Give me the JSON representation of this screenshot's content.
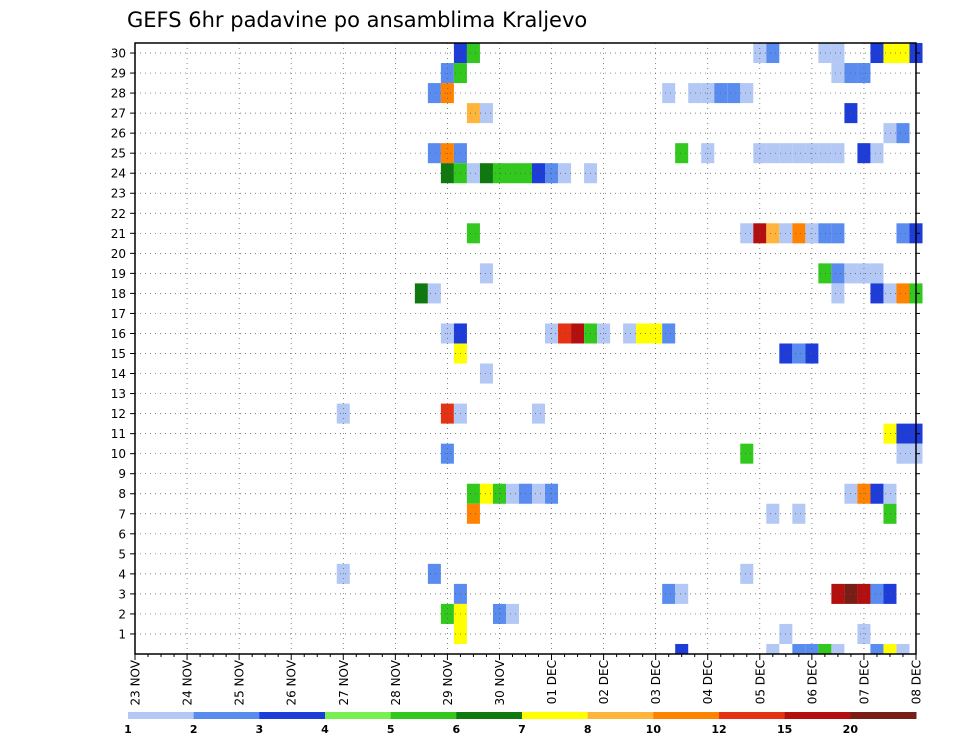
{
  "chart_data": {
    "type": "heatmap",
    "title": "GEFS 6hr padavine po ansamblima Kraljevo",
    "xlabel": "",
    "ylabel": "",
    "x_ticks": [
      "23 NOV",
      "24 NOV",
      "25 NOV",
      "26 NOV",
      "27 NOV",
      "28 NOV",
      "29 NOV",
      "30 NOV",
      "01 DEC",
      "02 DEC",
      "03 DEC",
      "04 DEC",
      "05 DEC",
      "06 DEC",
      "07 DEC",
      "08 DEC"
    ],
    "y_ticks": [
      "1",
      "2",
      "3",
      "4",
      "5",
      "6",
      "7",
      "8",
      "9",
      "10",
      "11",
      "12",
      "13",
      "14",
      "15",
      "16",
      "17",
      "18",
      "19",
      "20",
      "21",
      "22",
      "23",
      "24",
      "25",
      "26",
      "27",
      "28",
      "29",
      "30"
    ],
    "step_hours": 6,
    "grid": true,
    "colorbar": {
      "labels": [
        "1",
        "2",
        "3",
        "4",
        "5",
        "6",
        "7",
        "8",
        "10",
        "12",
        "15",
        "20"
      ],
      "colors": [
        "#b4c8f5",
        "#5a8cf0",
        "#1e3cd7",
        "#78f050",
        "#32c81e",
        "#0f780f",
        "#ffff00",
        "#ffb43c",
        "#ff8200",
        "#e63214",
        "#b40f0f",
        "#781e14"
      ]
    },
    "cells": [
      [
        30,
        25,
        3
      ],
      [
        30,
        26,
        5
      ],
      [
        30,
        48,
        1
      ],
      [
        30,
        49,
        2
      ],
      [
        30,
        53,
        1
      ],
      [
        30,
        54,
        1
      ],
      [
        30,
        57,
        3
      ],
      [
        30,
        58,
        7
      ],
      [
        30,
        59,
        7
      ],
      [
        30,
        60,
        3
      ],
      [
        29,
        24,
        2
      ],
      [
        29,
        25,
        5
      ],
      [
        29,
        54,
        1
      ],
      [
        29,
        55,
        2
      ],
      [
        29,
        56,
        2
      ],
      [
        28,
        23,
        2
      ],
      [
        28,
        24,
        10
      ],
      [
        28,
        41,
        1
      ],
      [
        28,
        43,
        1
      ],
      [
        28,
        44,
        1
      ],
      [
        28,
        45,
        2
      ],
      [
        28,
        46,
        2
      ],
      [
        28,
        47,
        1
      ],
      [
        27,
        26,
        8
      ],
      [
        27,
        27,
        1
      ],
      [
        27,
        55,
        3
      ],
      [
        26,
        58,
        1
      ],
      [
        26,
        59,
        2
      ],
      [
        25,
        23,
        2
      ],
      [
        25,
        24,
        10
      ],
      [
        25,
        25,
        2
      ],
      [
        25,
        42,
        5
      ],
      [
        25,
        44,
        1
      ],
      [
        25,
        48,
        1
      ],
      [
        25,
        49,
        1
      ],
      [
        25,
        50,
        1
      ],
      [
        25,
        51,
        1
      ],
      [
        25,
        52,
        1
      ],
      [
        25,
        53,
        1
      ],
      [
        25,
        54,
        1
      ],
      [
        25,
        56,
        3
      ],
      [
        25,
        57,
        1
      ],
      [
        24,
        24,
        6
      ],
      [
        24,
        25,
        5
      ],
      [
        24,
        26,
        1
      ],
      [
        24,
        27,
        6
      ],
      [
        24,
        28,
        5
      ],
      [
        24,
        29,
        5
      ],
      [
        24,
        30,
        5
      ],
      [
        24,
        31,
        3
      ],
      [
        24,
        32,
        2
      ],
      [
        24,
        33,
        1
      ],
      [
        24,
        35,
        1
      ],
      [
        21,
        26,
        5
      ],
      [
        21,
        47,
        1
      ],
      [
        21,
        48,
        15
      ],
      [
        21,
        49,
        8
      ],
      [
        21,
        50,
        1
      ],
      [
        21,
        51,
        10
      ],
      [
        21,
        52,
        1
      ],
      [
        21,
        53,
        2
      ],
      [
        21,
        54,
        2
      ],
      [
        21,
        59,
        2
      ],
      [
        21,
        60,
        3
      ],
      [
        19,
        27,
        1
      ],
      [
        19,
        53,
        5
      ],
      [
        19,
        54,
        2
      ],
      [
        19,
        55,
        1
      ],
      [
        19,
        56,
        1
      ],
      [
        19,
        57,
        1
      ],
      [
        18,
        22,
        6
      ],
      [
        18,
        23,
        1
      ],
      [
        18,
        54,
        1
      ],
      [
        18,
        57,
        3
      ],
      [
        18,
        58,
        1
      ],
      [
        18,
        59,
        10
      ],
      [
        18,
        60,
        5
      ],
      [
        16,
        24,
        1
      ],
      [
        16,
        25,
        3
      ],
      [
        16,
        32,
        1
      ],
      [
        16,
        33,
        12
      ],
      [
        16,
        34,
        15
      ],
      [
        16,
        35,
        5
      ],
      [
        16,
        36,
        1
      ],
      [
        16,
        38,
        1
      ],
      [
        16,
        39,
        7
      ],
      [
        16,
        40,
        7
      ],
      [
        16,
        41,
        2
      ],
      [
        15,
        25,
        7
      ],
      [
        15,
        50,
        3
      ],
      [
        15,
        51,
        2
      ],
      [
        15,
        52,
        3
      ],
      [
        14,
        27,
        1
      ],
      [
        12,
        16,
        1
      ],
      [
        12,
        24,
        12
      ],
      [
        12,
        25,
        1
      ],
      [
        12,
        31,
        1
      ],
      [
        11,
        58,
        7
      ],
      [
        11,
        59,
        3
      ],
      [
        11,
        60,
        3
      ],
      [
        10,
        24,
        2
      ],
      [
        10,
        47,
        5
      ],
      [
        10,
        59,
        1
      ],
      [
        10,
        60,
        1
      ],
      [
        8,
        26,
        5
      ],
      [
        8,
        27,
        7
      ],
      [
        8,
        28,
        5
      ],
      [
        8,
        29,
        1
      ],
      [
        8,
        30,
        2
      ],
      [
        8,
        31,
        1
      ],
      [
        8,
        32,
        2
      ],
      [
        8,
        55,
        1
      ],
      [
        8,
        56,
        10
      ],
      [
        8,
        57,
        3
      ],
      [
        8,
        58,
        1
      ],
      [
        7,
        26,
        10
      ],
      [
        7,
        49,
        1
      ],
      [
        7,
        51,
        1
      ],
      [
        7,
        58,
        5
      ],
      [
        4,
        16,
        1
      ],
      [
        4,
        23,
        2
      ],
      [
        4,
        47,
        1
      ],
      [
        3,
        25,
        2
      ],
      [
        3,
        41,
        2
      ],
      [
        3,
        42,
        1
      ],
      [
        3,
        54,
        15
      ],
      [
        3,
        55,
        20
      ],
      [
        3,
        56,
        15
      ],
      [
        3,
        57,
        2
      ],
      [
        3,
        58,
        3
      ],
      [
        2,
        24,
        5
      ],
      [
        2,
        25,
        7
      ],
      [
        2,
        28,
        2
      ],
      [
        2,
        29,
        1
      ],
      [
        1,
        25,
        7
      ],
      [
        1,
        50,
        1
      ],
      [
        1,
        56,
        1
      ],
      [
        0,
        42,
        3
      ],
      [
        0,
        49,
        1
      ],
      [
        0,
        51,
        2
      ],
      [
        0,
        52,
        2
      ],
      [
        0,
        53,
        5
      ],
      [
        0,
        54,
        1
      ],
      [
        0,
        57,
        2
      ],
      [
        0,
        58,
        7
      ],
      [
        0,
        59,
        1
      ]
    ]
  }
}
